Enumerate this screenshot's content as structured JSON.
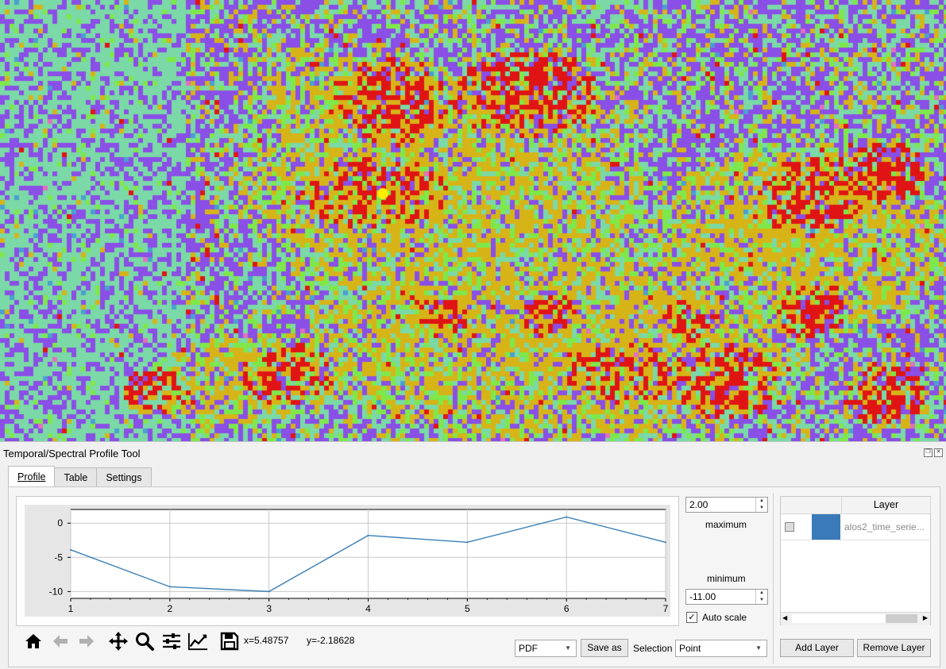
{
  "panel": {
    "title": "Temporal/Spectral Profile Tool",
    "tabs": [
      {
        "label": "Profile",
        "active": true
      },
      {
        "label": "Table",
        "active": false
      },
      {
        "label": "Settings",
        "active": false
      }
    ]
  },
  "chart_data": {
    "type": "line",
    "x": [
      1,
      2,
      3,
      4,
      5,
      6,
      7
    ],
    "series": [
      {
        "values": [
          -3.9,
          -9.3,
          -10.0,
          -1.8,
          -2.8,
          0.9,
          -2.8
        ],
        "color": "#3a7fb5"
      }
    ],
    "xticks": [
      "1",
      "2",
      "3",
      "4",
      "5",
      "6",
      "7"
    ],
    "yticks": [
      "0",
      "-5",
      "-10"
    ],
    "xlim": [
      1,
      7
    ],
    "ylim": [
      -11,
      2
    ],
    "grid": true
  },
  "scale": {
    "maximum_value": "2.00",
    "maximum_label": "maximum",
    "minimum_value": "-11.00",
    "minimum_label": "minimum",
    "autoscale_label": "Auto scale",
    "autoscale_checked": true
  },
  "toolbar": {
    "icons": [
      "home-icon",
      "back-arrow-icon",
      "forward-arrow-icon",
      "pan-icon",
      "zoom-icon",
      "configure-subplots-icon",
      "edit-curves-icon",
      "save-icon"
    ],
    "x_readout": "x=5.48757",
    "y_readout": "y=-2.18628"
  },
  "export": {
    "format": "PDF",
    "save_as_label": "Save as",
    "selection_label": "Selection",
    "selection_value": "Point"
  },
  "layers": {
    "header": "Layer",
    "rows": [
      {
        "name": "alos2_time_serie...",
        "color": "#3a7ab8",
        "checked": false
      }
    ],
    "add_label": "Add Layer",
    "remove_label": "Remove Layer"
  },
  "map": {
    "palette": [
      "#8a4fe6",
      "#7ad9a6",
      "#d6b418",
      "#e01414",
      "#7ee84a",
      "#4a9fd0",
      "#e070c0"
    ],
    "marker_color": "#ffee00"
  }
}
